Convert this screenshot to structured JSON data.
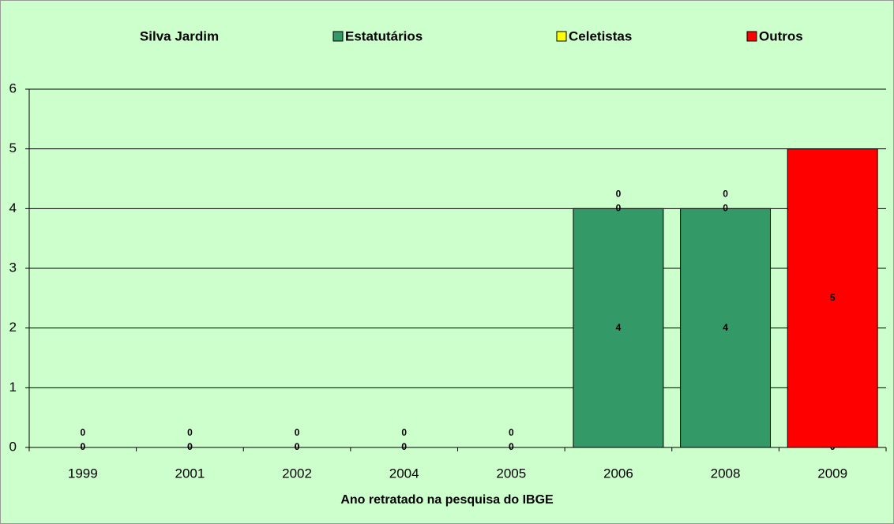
{
  "chart_data": {
    "type": "stacked_bar",
    "legend_title": "Silva Jardim",
    "categories": [
      "1999",
      "2001",
      "2002",
      "2004",
      "2005",
      "2006",
      "2008",
      "2009"
    ],
    "series": [
      {
        "name": "Estatutários",
        "color": "#339966",
        "values": [
          0,
          0,
          0,
          0,
          0,
          4,
          4,
          0
        ]
      },
      {
        "name": "Celetistas",
        "color": "#ffff00",
        "values": [
          0,
          0,
          0,
          0,
          0,
          0,
          0,
          0
        ]
      },
      {
        "name": "Outros",
        "color": "#ff0000",
        "values": [
          0,
          0,
          0,
          0,
          0,
          0,
          0,
          5
        ]
      }
    ],
    "ylim": [
      0,
      6
    ],
    "yticks": [
      0,
      1,
      2,
      3,
      4,
      5,
      6
    ],
    "grid": true,
    "xlabel": "Ano retratado na pesquisa do IBGE",
    "legend": "top"
  }
}
